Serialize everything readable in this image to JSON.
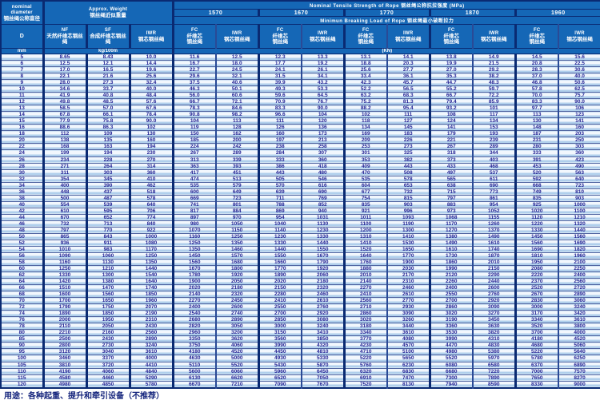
{
  "header": {
    "nominal_en": "nominal\ndiameter",
    "nominal_zh": "钢丝绳公称直径",
    "d_label": "D",
    "weight_en": "Approx. Weight",
    "weight_zh": "钢丝绳近似重量",
    "tensile_title": "Nominal Tensile Strength of Rope 钢丝绳公称抗拉强度 (MPa)",
    "breaking_title": "Minimun Breaking Load of Rope 钢丝绳最小破断拉力",
    "strengths": [
      "1570",
      "1670",
      "1770",
      "1870",
      "1960"
    ],
    "core_cols": [
      {
        "code": "NF",
        "zh": "天然纤维芯钢丝绳"
      },
      {
        "code": "SF",
        "zh": "合成纤维芯钢丝绳"
      },
      {
        "code": "IWR",
        "zh": "钢芯钢丝绳"
      }
    ],
    "load_pair": [
      {
        "code": "FC",
        "zh": "纤维芯\n钢丝绳"
      },
      {
        "code": "IWR",
        "zh": "钢芯钢丝绳"
      }
    ],
    "unit_mm": "mm",
    "unit_kg": "kg/100m",
    "unit_kn": "(KN)"
  },
  "colors": {
    "header_blue": "#1567b6",
    "stripe_blue": "#b0cfec",
    "row_white": "#f2f7fd",
    "border_navy": "#0a2a72",
    "value_indigo": "#232394"
  },
  "rows": [
    [
      "5",
      "8.65",
      "8.43",
      "10.0",
      "11.6",
      "12.5",
      "12.3",
      "13.3",
      "13.1",
      "14.1",
      "13.8",
      "14.9",
      "14.5",
      "15.6"
    ],
    [
      "6",
      "12.5",
      "12.1",
      "14.4",
      "16.7",
      "18.0",
      "17.7",
      "19.2",
      "18.8",
      "20.3",
      "19.9",
      "21.5",
      "20.8",
      "22.5"
    ],
    [
      "7",
      "17.0",
      "16.5",
      "19.6",
      "22.7",
      "24.5",
      "24.1",
      "26.1",
      "25.6",
      "27.7",
      "27.0",
      "29.2",
      "28.3",
      "30.6"
    ],
    [
      "8",
      "22.1",
      "21.6",
      "25.6",
      "29.6",
      "32.1",
      "31.5",
      "34.1",
      "33.4",
      "36.1",
      "35.3",
      "38.2",
      "37.0",
      "40.0"
    ],
    [
      "9",
      "28.0",
      "27.3",
      "32.4",
      "37.5",
      "40.6",
      "39.9",
      "43.2",
      "42.3",
      "45.7",
      "44.7",
      "48.3",
      "46.8",
      "50.6"
    ],
    [
      "10",
      "34.6",
      "33.7",
      "40.0",
      "46.3",
      "50.1",
      "49.3",
      "53.3",
      "52.2",
      "56.5",
      "55.2",
      "59.7",
      "57.8",
      "62.5"
    ],
    [
      "11",
      "41.9",
      "40.8",
      "48.4",
      "56.0",
      "60.6",
      "59.6",
      "64.5",
      "63.2",
      "68.3",
      "66.7",
      "72.2",
      "70.0",
      "75.7"
    ],
    [
      "12",
      "49.8",
      "48.5",
      "57.6",
      "66.7",
      "72.1",
      "70.9",
      "76.7",
      "75.2",
      "81.3",
      "79.4",
      "85.9",
      "83.3",
      "90.0"
    ],
    [
      "13",
      "58.5",
      "57.0",
      "67.6",
      "78.3",
      "84.6",
      "83.3",
      "90.0",
      "88.2",
      "95.4",
      "93.2",
      "101",
      "97.7",
      "106"
    ],
    [
      "14",
      "67.8",
      "66.1",
      "78.4",
      "90.8",
      "98.2",
      "96.6",
      "104",
      "102",
      "111",
      "108",
      "117",
      "113",
      "123"
    ],
    [
      "15",
      "77.9",
      "75.8",
      "90.0",
      "104",
      "113",
      "111",
      "120",
      "118",
      "127",
      "124",
      "134",
      "130",
      "141"
    ],
    [
      "16",
      "88.6",
      "86.3",
      "102",
      "119",
      "128",
      "126",
      "136",
      "134",
      "145",
      "141",
      "153",
      "148",
      "160"
    ],
    [
      "18",
      "112",
      "109",
      "130",
      "150",
      "162",
      "160",
      "173",
      "169",
      "183",
      "179",
      "193",
      "187",
      "203"
    ],
    [
      "20",
      "138",
      "135",
      "160",
      "185",
      "200",
      "197",
      "213",
      "209",
      "226",
      "221",
      "239",
      "231",
      "250"
    ],
    [
      "22",
      "168",
      "163",
      "194",
      "224",
      "242",
      "238",
      "258",
      "253",
      "273",
      "267",
      "289",
      "280",
      "303"
    ],
    [
      "24",
      "199",
      "194",
      "230",
      "267",
      "289",
      "284",
      "307",
      "301",
      "325",
      "318",
      "344",
      "333",
      "360"
    ],
    [
      "26",
      "234",
      "228",
      "270",
      "313",
      "339",
      "333",
      "360",
      "353",
      "382",
      "373",
      "403",
      "391",
      "423"
    ],
    [
      "28",
      "271",
      "264",
      "314",
      "363",
      "393",
      "386",
      "418",
      "409",
      "443",
      "433",
      "468",
      "453",
      "490"
    ],
    [
      "30",
      "311",
      "303",
      "360",
      "417",
      "451",
      "443",
      "480",
      "470",
      "508",
      "497",
      "537",
      "520",
      "563"
    ],
    [
      "32",
      "354",
      "345",
      "410",
      "474",
      "513",
      "505",
      "546",
      "535",
      "578",
      "565",
      "611",
      "592",
      "640"
    ],
    [
      "34",
      "400",
      "390",
      "462",
      "535",
      "579",
      "570",
      "616",
      "604",
      "653",
      "638",
      "690",
      "668",
      "723"
    ],
    [
      "36",
      "448",
      "437",
      "518",
      "600",
      "649",
      "639",
      "690",
      "677",
      "732",
      "715",
      "773",
      "749",
      "810"
    ],
    [
      "38",
      "500",
      "487",
      "578",
      "669",
      "723",
      "711",
      "769",
      "754",
      "815",
      "797",
      "861",
      "835",
      "903"
    ],
    [
      "40",
      "554",
      "539",
      "640",
      "741",
      "801",
      "788",
      "852",
      "835",
      "903",
      "883",
      "954",
      "925",
      "1000"
    ],
    [
      "42",
      "610",
      "595",
      "706",
      "817",
      "884",
      "869",
      "940",
      "921",
      "996",
      "973",
      "1052",
      "1020",
      "1100"
    ],
    [
      "44",
      "670",
      "652",
      "774",
      "897",
      "970",
      "954",
      "1031",
      "1011",
      "1093",
      "1068",
      "1155",
      "1120",
      "1210"
    ],
    [
      "46",
      "732",
      "713",
      "840",
      "980",
      "1050",
      "1040",
      "1130",
      "1100",
      "1190",
      "1170",
      "1260",
      "1220",
      "1320"
    ],
    [
      "48",
      "797",
      "770",
      "922",
      "1070",
      "1150",
      "1140",
      "1230",
      "1200",
      "1300",
      "1270",
      "1370",
      "1330",
      "1440"
    ],
    [
      "50",
      "865",
      "843",
      "1000",
      "1160",
      "1250",
      "1230",
      "1330",
      "1310",
      "1410",
      "1380",
      "1490",
      "1450",
      "1560"
    ],
    [
      "52",
      "936",
      "911",
      "1080",
      "1250",
      "1350",
      "1330",
      "1440",
      "1410",
      "1530",
      "1490",
      "1610",
      "1560",
      "1690"
    ],
    [
      "54",
      "1010",
      "983",
      "1170",
      "1350",
      "1460",
      "1440",
      "1550",
      "1520",
      "1650",
      "1610",
      "1740",
      "1690",
      "1820"
    ],
    [
      "56",
      "1090",
      "1060",
      "1250",
      "1450",
      "1570",
      "1550",
      "1670",
      "1640",
      "1770",
      "1730",
      "1870",
      "1810",
      "1960"
    ],
    [
      "58",
      "1160",
      "1130",
      "1350",
      "1560",
      "1680",
      "1660",
      "1790",
      "1760",
      "1900",
      "1860",
      "2010",
      "1950",
      "2100"
    ],
    [
      "60",
      "1250",
      "1210",
      "1440",
      "1670",
      "1800",
      "1770",
      "1920",
      "1880",
      "2030",
      "1990",
      "2150",
      "2080",
      "2250"
    ],
    [
      "62",
      "1330",
      "1300",
      "1540",
      "1780",
      "1920",
      "1890",
      "2060",
      "2010",
      "2170",
      "2120",
      "2290",
      "2220",
      "2400"
    ],
    [
      "64",
      "1420",
      "1380",
      "1640",
      "1900",
      "2050",
      "2020",
      "2180",
      "2140",
      "2310",
      "2260",
      "2440",
      "2370",
      "2560"
    ],
    [
      "66",
      "1510",
      "1470",
      "1740",
      "2020",
      "2180",
      "2150",
      "2320",
      "2270",
      "2460",
      "2400",
      "2600",
      "2520",
      "2720"
    ],
    [
      "68",
      "1600",
      "1560",
      "1850",
      "2140",
      "2320",
      "2280",
      "2460",
      "2410",
      "2610",
      "2550",
      "2760",
      "2670",
      "2890"
    ],
    [
      "70",
      "1700",
      "1650",
      "1960",
      "2270",
      "2450",
      "2410",
      "2610",
      "2560",
      "2770",
      "2700",
      "2920",
      "2830",
      "3060"
    ],
    [
      "72",
      "1790",
      "1750",
      "2070",
      "2400",
      "2600",
      "2550",
      "2760",
      "2710",
      "2930",
      "2860",
      "3090",
      "3000",
      "3240"
    ],
    [
      "74",
      "1890",
      "1850",
      "2190",
      "2540",
      "2740",
      "2700",
      "2920",
      "2860",
      "3090",
      "3020",
      "3270",
      "3170",
      "3420"
    ],
    [
      "76",
      "2000",
      "1950",
      "2310",
      "2680",
      "2890",
      "2850",
      "3080",
      "3020",
      "3260",
      "3190",
      "3450",
      "3340",
      "3610"
    ],
    [
      "78",
      "2110",
      "2050",
      "2430",
      "2820",
      "3050",
      "3000",
      "3240",
      "3180",
      "3440",
      "3360",
      "3630",
      "3520",
      "3800"
    ],
    [
      "80",
      "2210",
      "2160",
      "2560",
      "2960",
      "3200",
      "3150",
      "3410",
      "3340",
      "3610",
      "3530",
      "3820",
      "3700",
      "4000"
    ],
    [
      "85",
      "2500",
      "2430",
      "2890",
      "3350",
      "3620",
      "3560",
      "3850",
      "3770",
      "4080",
      "3990",
      "4310",
      "4180",
      "4520"
    ],
    [
      "90",
      "2800",
      "2730",
      "3240",
      "3750",
      "4060",
      "3990",
      "4320",
      "4230",
      "4570",
      "4470",
      "4830",
      "4680",
      "5060"
    ],
    [
      "95",
      "3120",
      "3040",
      "3610",
      "4180",
      "4520",
      "4450",
      "4810",
      "4710",
      "5100",
      "4980",
      "5380",
      "5220",
      "5640"
    ],
    [
      "100",
      "3460",
      "3370",
      "4000",
      "4630",
      "5000",
      "4930",
      "5330",
      "5220",
      "5650",
      "5520",
      "5970",
      "5780",
      "6250"
    ],
    [
      "105",
      "3810",
      "3720",
      "4410",
      "5110",
      "5520",
      "5430",
      "5870",
      "5760",
      "6230",
      "6080",
      "6580",
      "6370",
      "6890"
    ],
    [
      "110",
      "4190",
      "4060",
      "4840",
      "5600",
      "6060",
      "5960",
      "6450",
      "6320",
      "6830",
      "6680",
      "7220",
      "7000",
      "7570"
    ],
    [
      "115",
      "4580",
      "4460",
      "5290",
      "6130",
      "6620",
      "6520",
      "7050",
      "6910",
      "7470",
      "7300",
      "7890",
      "7650",
      "8270"
    ],
    [
      "120",
      "4980",
      "4850",
      "5780",
      "6670",
      "7210",
      "7090",
      "7670",
      "7520",
      "8130",
      "7940",
      "8590",
      "8330",
      "9000"
    ]
  ],
  "footer": {
    "usage": "用途：各种起重、提升和牵引设备（不推荐）"
  }
}
